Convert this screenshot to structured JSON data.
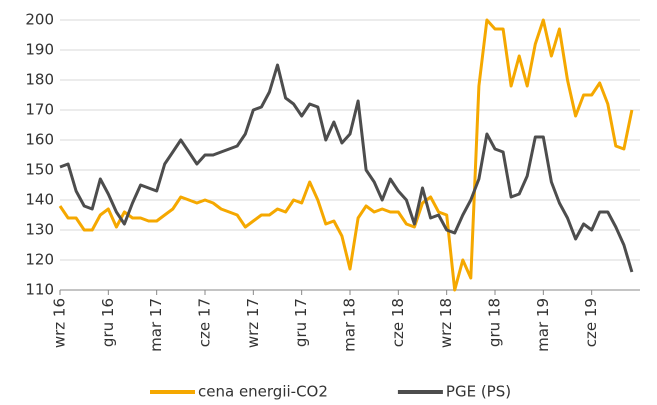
{
  "chart_data": {
    "type": "line",
    "x": [
      0,
      0.5,
      1,
      1.5,
      2,
      2.5,
      3,
      3.5,
      4,
      4.5,
      5,
      5.5,
      6,
      6.5,
      7,
      7.5,
      8,
      8.5,
      9,
      9.5,
      10,
      10.5,
      11,
      11.5,
      12,
      12.5,
      13,
      13.5,
      14,
      14.5,
      15,
      15.5,
      16,
      16.5,
      17,
      17.5,
      18,
      18.5,
      19,
      19.5,
      20,
      20.5,
      21,
      21.5,
      22,
      22.5,
      23,
      23.5,
      24,
      24.5,
      25,
      25.5,
      26,
      26.5,
      27,
      27.5,
      28,
      28.5,
      29,
      29.5,
      30,
      30.5,
      31,
      31.5,
      32,
      32.5,
      33,
      33.5,
      34,
      34.5,
      35,
      35.5
    ],
    "series": [
      {
        "name": "cena energii-CO2",
        "color": "#f5a800",
        "values": [
          138,
          134,
          134,
          130,
          130,
          135,
          137,
          131,
          136,
          134,
          134,
          133,
          133,
          135,
          137,
          141,
          140,
          139,
          140,
          139,
          137,
          136,
          135,
          131,
          133,
          135,
          135,
          137,
          136,
          140,
          139,
          146,
          140,
          132,
          133,
          128,
          117,
          134,
          138,
          136,
          137,
          136,
          136,
          132,
          131,
          139,
          141,
          136,
          135,
          110,
          120,
          114,
          178,
          200,
          197,
          197,
          178,
          188,
          178,
          192,
          200,
          188,
          197,
          180,
          168,
          175,
          175,
          179,
          172,
          158,
          157,
          170
        ]
      },
      {
        "name": "PGE (PS)",
        "color": "#4d4d4d",
        "values": [
          151,
          152,
          143,
          138,
          137,
          147,
          142,
          136,
          132,
          139,
          145,
          144,
          143,
          152,
          156,
          160,
          156,
          152,
          155,
          155,
          156,
          157,
          158,
          162,
          170,
          171,
          176,
          185,
          174,
          172,
          168,
          172,
          171,
          160,
          166,
          159,
          162,
          173,
          150,
          146,
          140,
          147,
          143,
          140,
          132,
          144,
          134,
          135,
          130,
          129,
          135,
          140,
          147,
          162,
          157,
          156,
          141,
          142,
          148,
          161,
          161,
          146,
          139,
          134,
          127,
          132,
          130,
          136,
          136,
          131,
          125,
          116
        ]
      }
    ],
    "xlim": [
      0,
      36
    ],
    "xticks": [
      {
        "value": 0,
        "label": "wrz 16"
      },
      {
        "value": 3,
        "label": "gru 16"
      },
      {
        "value": 6,
        "label": "mar 17"
      },
      {
        "value": 9,
        "label": "cze 17"
      },
      {
        "value": 12,
        "label": "wrz 17"
      },
      {
        "value": 15,
        "label": "gru 17"
      },
      {
        "value": 18,
        "label": "mar 18"
      },
      {
        "value": 21,
        "label": "cze 18"
      },
      {
        "value": 24,
        "label": "wrz 18"
      },
      {
        "value": 27,
        "label": "gru 18"
      },
      {
        "value": 30,
        "label": "mar 19"
      },
      {
        "value": 33,
        "label": "cze 19"
      }
    ],
    "ylim": [
      110,
      200
    ],
    "yticks": [
      110,
      120,
      130,
      140,
      150,
      160,
      170,
      180,
      190,
      200
    ],
    "grid": true,
    "legend": "bottom"
  }
}
